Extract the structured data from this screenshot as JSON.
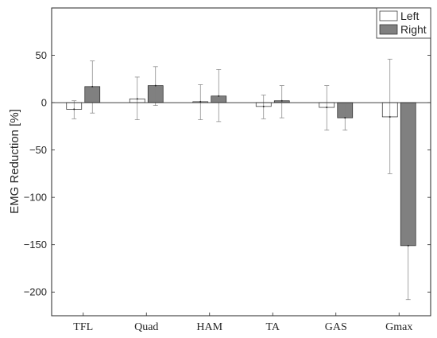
{
  "chart_data": {
    "type": "bar",
    "categories": [
      "TFL",
      "Quad",
      "HAM",
      "TA",
      "GAS",
      "Gmax"
    ],
    "series": [
      {
        "name": "Left",
        "color": "#ffffff",
        "values": [
          -7,
          4,
          1,
          -4,
          -5,
          -15
        ],
        "err_low": [
          -17,
          -18,
          -18,
          -17,
          -29,
          -75
        ],
        "err_high": [
          2,
          27,
          19,
          8,
          18,
          46
        ]
      },
      {
        "name": "Right",
        "color": "#808080",
        "values": [
          17,
          18,
          7,
          2,
          -16,
          -151
        ],
        "err_low": [
          -11,
          -3,
          -20,
          -16,
          -29,
          -208
        ],
        "err_high": [
          44,
          38,
          35,
          18,
          -2,
          -94
        ]
      }
    ],
    "xlabel": "",
    "ylabel": "EMG Reduction [%]",
    "ylim": [
      -225,
      100
    ],
    "yticks": [
      50,
      0,
      -50,
      -100,
      -150,
      -200
    ],
    "ytick_labels": [
      "50",
      "0",
      "−50",
      "−100",
      "−150",
      "−200"
    ],
    "grid": false,
    "legend_position": "top-right",
    "legend_labels": [
      "Left",
      "Right"
    ]
  }
}
